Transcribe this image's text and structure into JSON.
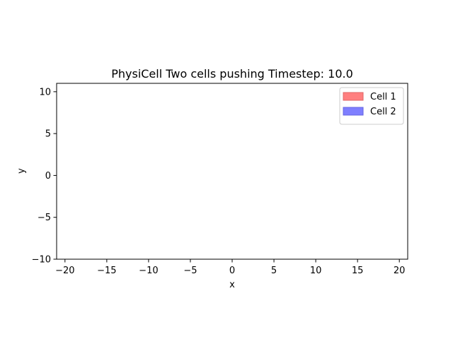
{
  "chart_data": {
    "type": "scatter",
    "title": "PhysiCell Two cells pushing Timestep: 10.0",
    "xlabel": "x",
    "ylabel": "y",
    "xlim": [
      -21,
      21
    ],
    "ylim": [
      -10,
      11
    ],
    "xticks": [
      -20,
      -15,
      -10,
      -5,
      0,
      5,
      10,
      15,
      20
    ],
    "xtick_labels": [
      "−20",
      "−15",
      "−10",
      "−5",
      "0",
      "5",
      "10",
      "15",
      "20"
    ],
    "yticks": [
      -10,
      -5,
      0,
      5,
      10
    ],
    "ytick_labels": [
      "−10",
      "−5",
      "0",
      "5",
      "10"
    ],
    "grid": false,
    "legend_position": "top-right",
    "series": [
      {
        "name": "Cell 1",
        "color": "#ff7f7f",
        "edge_color": "#e06666",
        "points": []
      },
      {
        "name": "Cell 2",
        "color": "#7f7fff",
        "edge_color": "#6666e0",
        "points": []
      }
    ]
  }
}
